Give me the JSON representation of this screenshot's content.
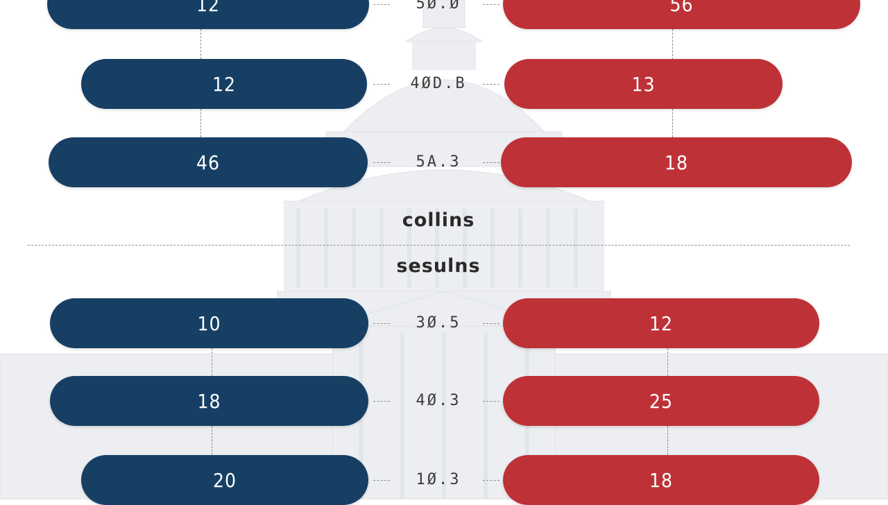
{
  "colors": {
    "left_bar": "#173f64",
    "right_bar": "#be3237",
    "background_art": "#e9ebee"
  },
  "background_icon": "capitol-building-icon",
  "chart_data": {
    "type": "bar",
    "title": "",
    "xlabel": "",
    "ylabel": "",
    "legend": "none",
    "grid": false,
    "sections": [
      {
        "name": "collins",
        "label": "collins",
        "rows": [
          {
            "left": "12",
            "center": "5Ø.Ø",
            "right": "56"
          },
          {
            "left": "12",
            "center": "4ØD.B",
            "right": "13"
          },
          {
            "left": "46",
            "center": "5A.3",
            "right": "18"
          }
        ]
      },
      {
        "name": "sesulns",
        "label": "sesulns",
        "rows": [
          {
            "left": "10",
            "center": "3Ø.5",
            "right": "12"
          },
          {
            "left": "18",
            "center": "4Ø.3",
            "right": "25"
          },
          {
            "left": "20",
            "center": "1Ø.3",
            "right": "18"
          }
        ]
      }
    ]
  }
}
